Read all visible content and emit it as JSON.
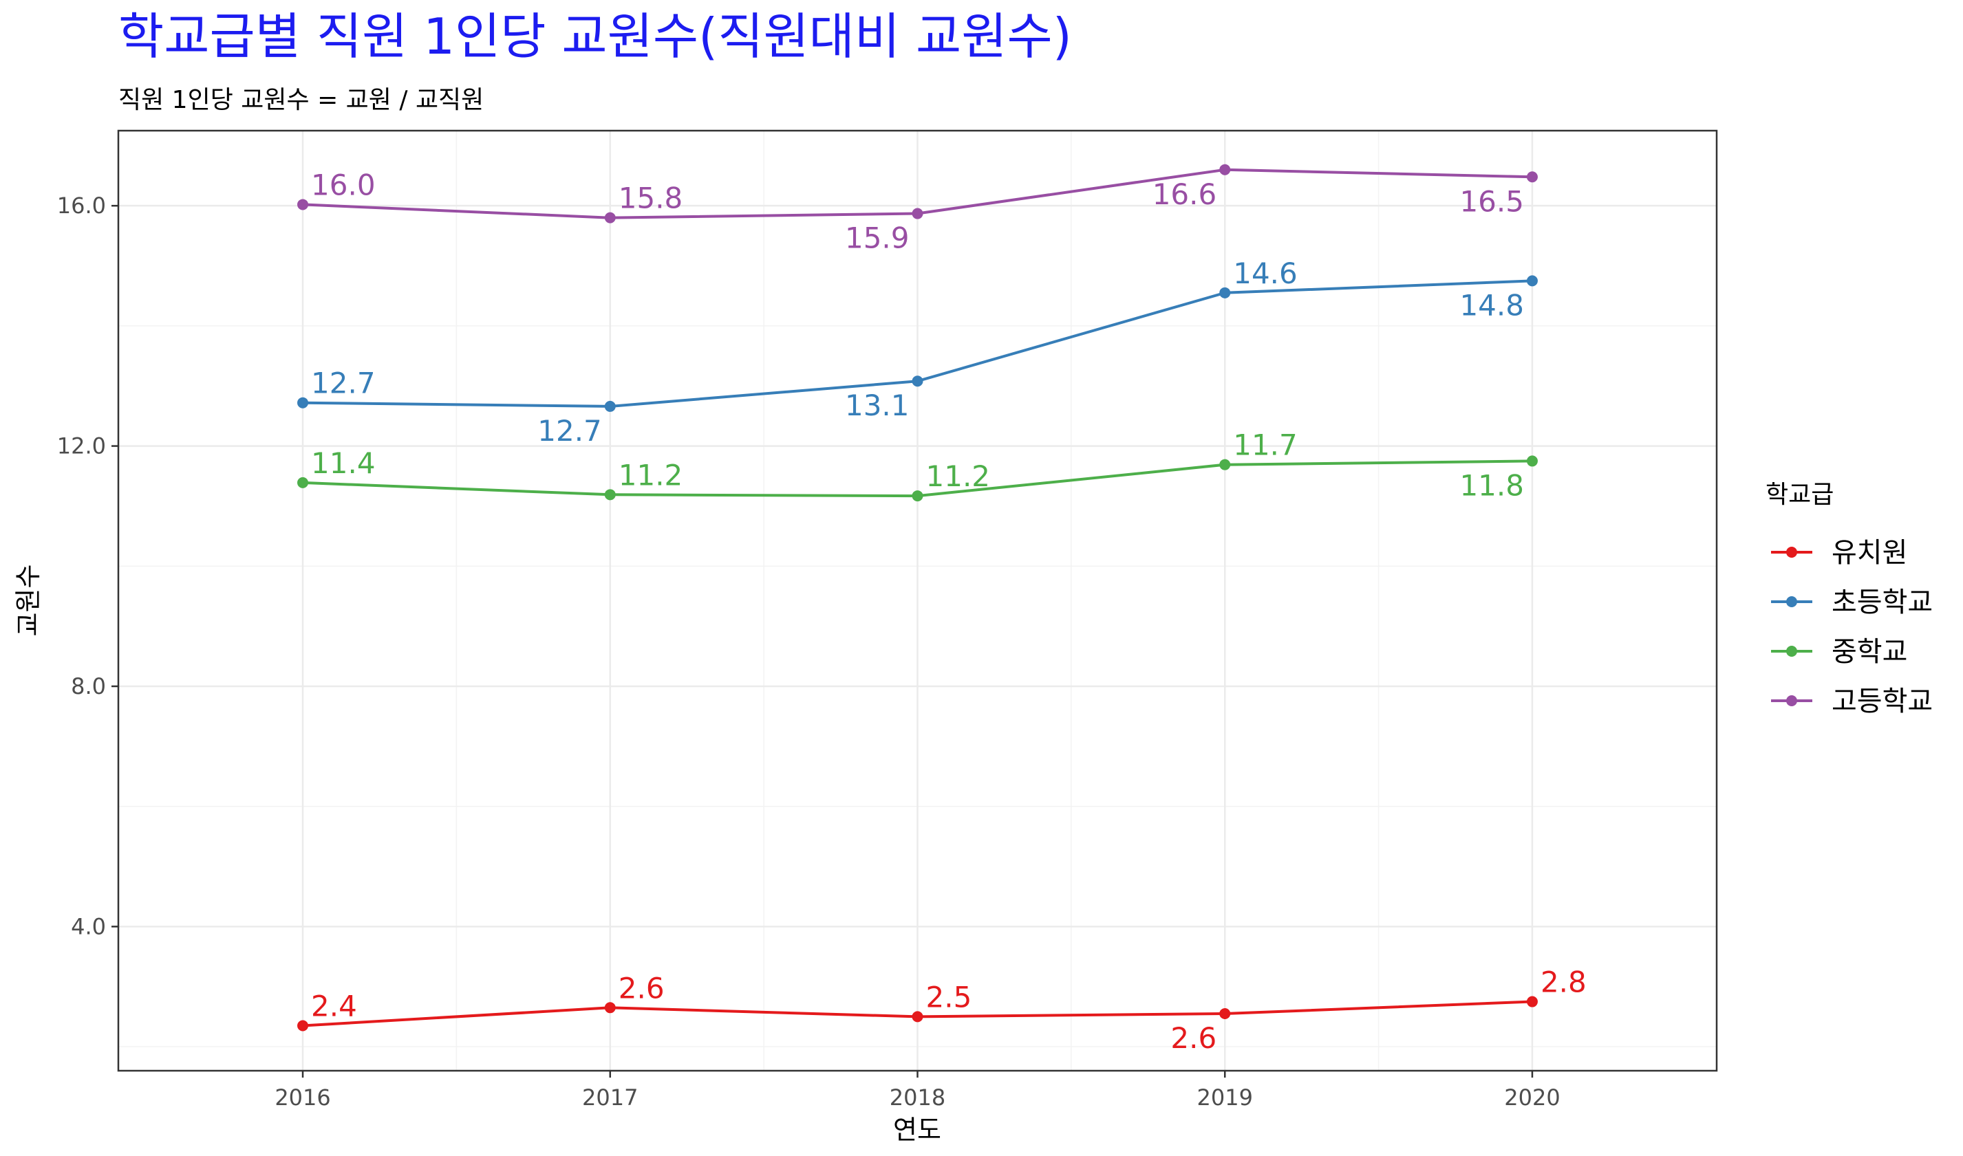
{
  "chart_data": {
    "type": "line",
    "title": "학교급별 직원 1인당 교원수(직원대비 교원수)",
    "subtitle": "직원 1인당 교원수 = 교원 / 교직원",
    "xlabel": "연도",
    "ylabel": "교원수",
    "x": [
      2016,
      2017,
      2018,
      2019,
      2020
    ],
    "x_tick_labels": [
      "2016",
      "2017",
      "2018",
      "2019",
      "2020"
    ],
    "y_ticks": [
      4.0,
      8.0,
      12.0,
      16.0
    ],
    "y_tick_labels": [
      "4.0",
      "8.0",
      "12.0",
      "16.0"
    ],
    "xlim": [
      2015.4,
      2020.6
    ],
    "ylim": [
      1.6,
      17.25
    ],
    "grid": true,
    "legend": {
      "title": "학교급",
      "position": "right"
    },
    "series": [
      {
        "name": "유치원",
        "color": "#e41a1c",
        "values": [
          2.35,
          2.65,
          2.5,
          2.55,
          2.75
        ],
        "labels": [
          "2.4",
          "2.6",
          "2.5",
          "2.6",
          "2.8"
        ],
        "label_pos": [
          "above",
          "above",
          "above",
          "below",
          "above"
        ]
      },
      {
        "name": "초등학교",
        "color": "#377eb8",
        "values": [
          12.72,
          12.66,
          13.08,
          14.55,
          14.75
        ],
        "labels": [
          "12.7",
          "12.7",
          "13.1",
          "14.6",
          "14.8"
        ],
        "label_pos": [
          "above",
          "below",
          "below",
          "above",
          "below"
        ]
      },
      {
        "name": "중학교",
        "color": "#4daf4a",
        "values": [
          11.39,
          11.19,
          11.17,
          11.69,
          11.75
        ],
        "labels": [
          "11.4",
          "11.2",
          "11.2",
          "11.7",
          "11.8"
        ],
        "label_pos": [
          "above",
          "above",
          "above",
          "above",
          "below"
        ]
      },
      {
        "name": "고등학교",
        "color": "#984ea3",
        "values": [
          16.02,
          15.8,
          15.87,
          16.6,
          16.48
        ],
        "labels": [
          "16.0",
          "15.8",
          "15.9",
          "16.6",
          "16.5"
        ],
        "label_pos": [
          "above",
          "above",
          "below",
          "below",
          "below"
        ]
      }
    ]
  }
}
